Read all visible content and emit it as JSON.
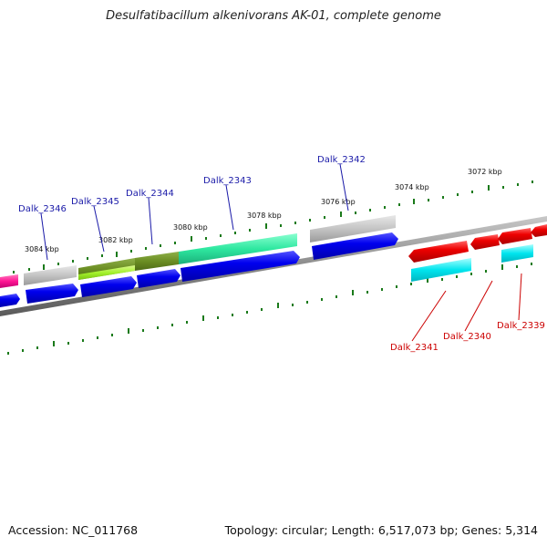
{
  "title": "Desulfatibacillum alkenivorans AK-01, complete genome",
  "footer": {
    "accession": "Accession: NC_011768",
    "summary": "Topology: circular; Length: 6,517,073 bp; Genes: 5,314"
  },
  "scale_labels": [
    "3084 kbp",
    "3082 kbp",
    "3080 kbp",
    "3078 kbp",
    "3076 kbp",
    "3074 kbp",
    "3072 kbp"
  ],
  "gene_labels_top": [
    "Dalk_2346",
    "Dalk_2345",
    "Dalk_2344",
    "Dalk_2343",
    "Dalk_2342"
  ],
  "gene_labels_bottom": [
    "Dalk_2341",
    "Dalk_2340",
    "Dalk_2339"
  ],
  "colors": {
    "blue_gene": "#0000ee",
    "red_gene": "#ee0000",
    "cyan_gene": "#00e5ee",
    "grey_gene": "#b8b8b8",
    "teal_gene": "#2ee8a0",
    "olive_gene": "#6b8e23",
    "lime_gene": "#adff2f",
    "magenta_gene": "#ff1493",
    "tick_green": "#1a7a1a",
    "label_blue": "#1a1aa8",
    "label_red": "#cc0000"
  }
}
